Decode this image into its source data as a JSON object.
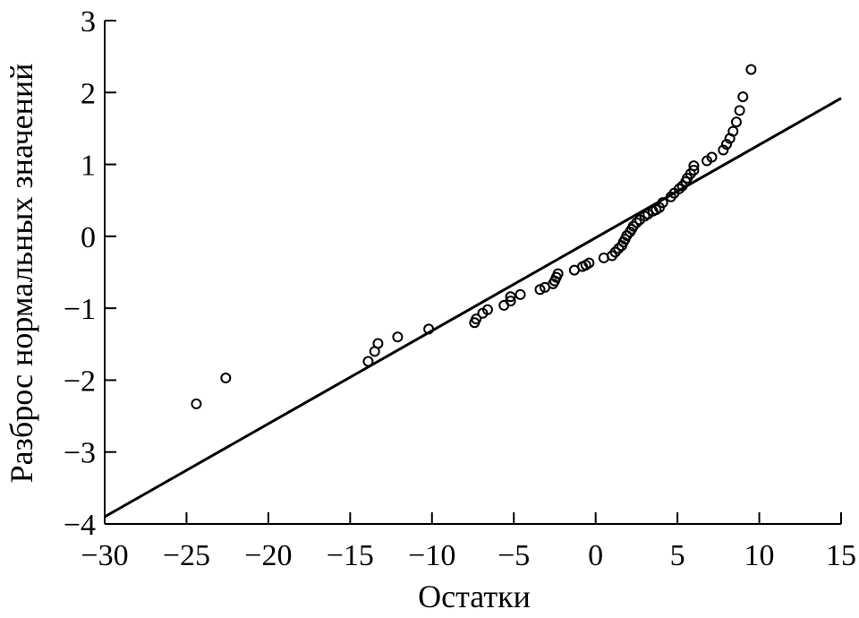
{
  "chart_data": {
    "type": "scatter",
    "xlabel": "Остатки",
    "ylabel": "Разброс нормальных значений",
    "xlim": [
      -30,
      15
    ],
    "ylim": [
      -4,
      3
    ],
    "x_ticks": [
      "−30",
      "−25",
      "−20",
      "−15",
      "−10",
      "−5",
      "0",
      "5",
      "10",
      "15"
    ],
    "y_ticks": [
      "−4",
      "−3",
      "−2",
      "−1",
      "0",
      "1",
      "2",
      "3"
    ],
    "x_tick_values": [
      -30,
      -25,
      -20,
      -15,
      -10,
      -5,
      0,
      5,
      10,
      15
    ],
    "y_tick_values": [
      -4,
      -3,
      -2,
      -1,
      0,
      1,
      2,
      3
    ],
    "grid": false,
    "reference_line": {
      "x": [
        -30,
        15
      ],
      "y": [
        -3.9,
        1.92
      ]
    },
    "points": [
      [
        -24.4,
        -2.33
      ],
      [
        -22.6,
        -1.97
      ],
      [
        -13.9,
        -1.74
      ],
      [
        -13.5,
        -1.6
      ],
      [
        -13.3,
        -1.49
      ],
      [
        -12.1,
        -1.4
      ],
      [
        -10.2,
        -1.29
      ],
      [
        -7.4,
        -1.2
      ],
      [
        -7.3,
        -1.15
      ],
      [
        -6.9,
        -1.07
      ],
      [
        -6.6,
        -1.02
      ],
      [
        -5.6,
        -0.96
      ],
      [
        -5.2,
        -0.9
      ],
      [
        -5.2,
        -0.84
      ],
      [
        -4.6,
        -0.81
      ],
      [
        -3.4,
        -0.74
      ],
      [
        -3.1,
        -0.71
      ],
      [
        -2.6,
        -0.66
      ],
      [
        -2.5,
        -0.62
      ],
      [
        -2.4,
        -0.57
      ],
      [
        -2.3,
        -0.52
      ],
      [
        -1.3,
        -0.47
      ],
      [
        -0.8,
        -0.42
      ],
      [
        -0.6,
        -0.4
      ],
      [
        -0.4,
        -0.37
      ],
      [
        0.5,
        -0.3
      ],
      [
        1.0,
        -0.27
      ],
      [
        1.2,
        -0.22
      ],
      [
        1.4,
        -0.17
      ],
      [
        1.6,
        -0.13
      ],
      [
        1.7,
        -0.08
      ],
      [
        1.8,
        -0.04
      ],
      [
        1.9,
        0.01
      ],
      [
        2.1,
        0.06
      ],
      [
        2.2,
        0.1
      ],
      [
        2.3,
        0.14
      ],
      [
        2.5,
        0.19
      ],
      [
        2.7,
        0.23
      ],
      [
        3.0,
        0.28
      ],
      [
        3.2,
        0.31
      ],
      [
        3.5,
        0.35
      ],
      [
        3.7,
        0.37
      ],
      [
        3.9,
        0.4
      ],
      [
        4.1,
        0.47
      ],
      [
        4.6,
        0.55
      ],
      [
        4.8,
        0.6
      ],
      [
        5.1,
        0.66
      ],
      [
        5.3,
        0.7
      ],
      [
        5.5,
        0.76
      ],
      [
        5.6,
        0.81
      ],
      [
        5.8,
        0.87
      ],
      [
        6.0,
        0.92
      ],
      [
        6.0,
        0.98
      ],
      [
        6.8,
        1.05
      ],
      [
        7.1,
        1.1
      ],
      [
        7.8,
        1.2
      ],
      [
        8.0,
        1.28
      ],
      [
        8.2,
        1.36
      ],
      [
        8.4,
        1.46
      ],
      [
        8.6,
        1.59
      ],
      [
        8.8,
        1.75
      ],
      [
        9.0,
        1.94
      ],
      [
        9.5,
        2.32
      ]
    ]
  }
}
